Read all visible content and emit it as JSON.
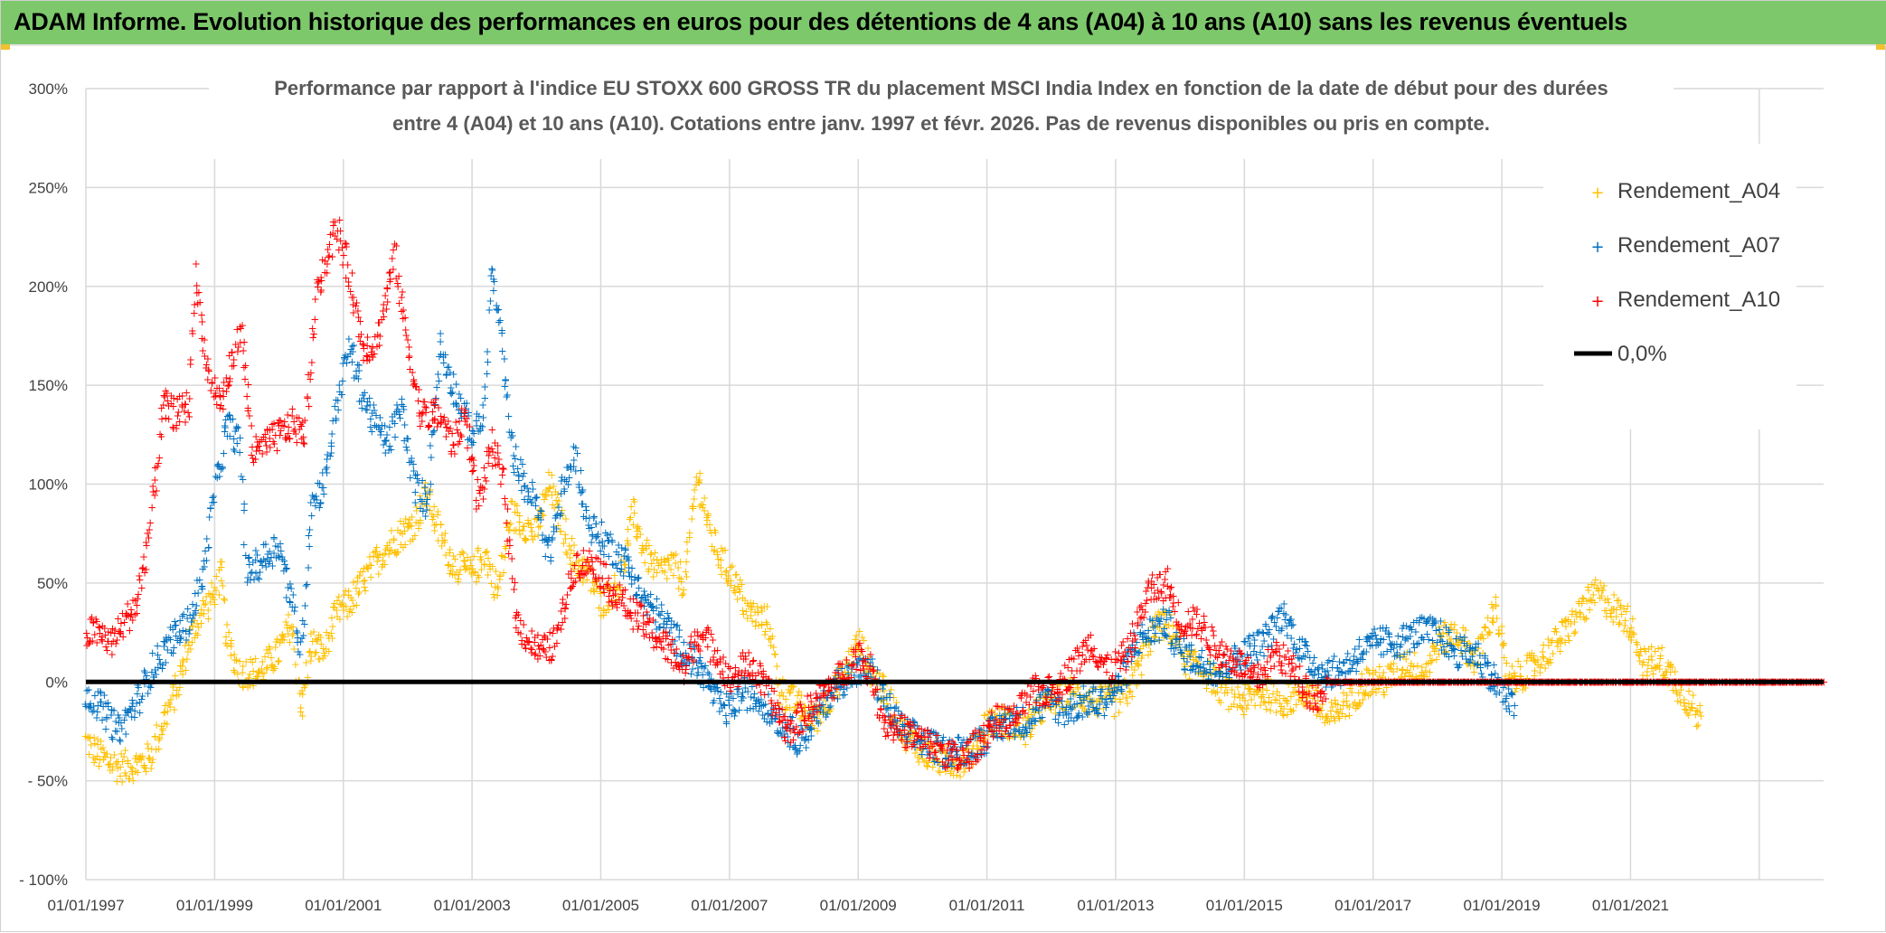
{
  "header": {
    "title": "ADAM Informe. Evolution historique des performances en euros pour des détentions de 4 ans (A04) à 10 ans (A10) sans les revenus éventuels"
  },
  "colors": {
    "banner": "#7dc86b",
    "A04": "#ffc000",
    "A07": "#0070c0",
    "A10": "#ff0000",
    "zero_line": "#000000",
    "grid": "#d9d9d9"
  },
  "chart_data": {
    "type": "scatter",
    "subtitle_lines": [
      "Performance par rapport à l'indice EU STOXX 600 GROSS TR  du placement MSCI India Index en fonction de la date de début pour des durées",
      "entre 4 (A04) et 10 ans (A10). Cotations entre janv. 1997 et févr. 2026. Pas de revenus disponibles ou pris en compte."
    ],
    "y_axis": {
      "min": -100,
      "max": 300,
      "step": 50,
      "tick_labels": [
        "- 100%",
        "- 50%",
        "0%",
        "50%",
        "100%",
        "150%",
        "200%",
        "250%",
        "300%"
      ]
    },
    "x_axis": {
      "min": 1997.0,
      "max": 2024.0,
      "tick_years": [
        1997,
        1999,
        2001,
        2003,
        2005,
        2007,
        2009,
        2011,
        2013,
        2015,
        2017,
        2019,
        2021
      ],
      "tick_labels": [
        "01/01/1997",
        "01/01/1999",
        "01/01/2001",
        "01/01/2003",
        "01/01/2005",
        "01/01/2007",
        "01/01/2009",
        "01/01/2011",
        "01/01/2013",
        "01/01/2015",
        "01/01/2017",
        "01/01/2019",
        "01/01/2021"
      ],
      "grid_lines": [
        1997,
        1999,
        2001,
        2003,
        2005,
        2007,
        2009,
        2011,
        2013,
        2015,
        2017,
        2019,
        2021,
        2023
      ]
    },
    "legend": {
      "position": "top-right",
      "entries": [
        "Rendement_A04",
        "Rendement_A07",
        "Rendement_A10",
        "0,0%"
      ]
    },
    "series": [
      {
        "name": "Rendement_A04",
        "x_start": 1997.0,
        "x_end": 2022.1,
        "keyframes": [
          [
            1997.0,
            -30
          ],
          [
            1997.2,
            -37
          ],
          [
            1997.5,
            -43
          ],
          [
            1997.8,
            -42
          ],
          [
            1998.0,
            -38
          ],
          [
            1998.2,
            -20
          ],
          [
            1998.4,
            -5
          ],
          [
            1998.6,
            20
          ],
          [
            1998.8,
            35
          ],
          [
            1999.0,
            45
          ],
          [
            1999.1,
            55
          ],
          [
            1999.2,
            20
          ],
          [
            1999.4,
            5
          ],
          [
            1999.7,
            5
          ],
          [
            2000.0,
            15
          ],
          [
            2000.2,
            30
          ],
          [
            2000.35,
            -15
          ],
          [
            2000.5,
            20
          ],
          [
            2000.7,
            15
          ],
          [
            2000.9,
            35
          ],
          [
            2001.1,
            40
          ],
          [
            2001.3,
            50
          ],
          [
            2001.6,
            65
          ],
          [
            2001.9,
            75
          ],
          [
            2002.1,
            80
          ],
          [
            2002.3,
            95
          ],
          [
            2002.5,
            75
          ],
          [
            2002.7,
            60
          ],
          [
            2003.0,
            55
          ],
          [
            2003.2,
            65
          ],
          [
            2003.4,
            45
          ],
          [
            2003.6,
            85
          ],
          [
            2003.8,
            80
          ],
          [
            2004.0,
            75
          ],
          [
            2004.2,
            100
          ],
          [
            2004.4,
            80
          ],
          [
            2004.6,
            60
          ],
          [
            2004.8,
            55
          ],
          [
            2005.0,
            40
          ],
          [
            2005.3,
            50
          ],
          [
            2005.5,
            85
          ],
          [
            2005.7,
            65
          ],
          [
            2005.9,
            55
          ],
          [
            2006.1,
            60
          ],
          [
            2006.3,
            50
          ],
          [
            2006.5,
            105
          ],
          [
            2006.7,
            75
          ],
          [
            2006.9,
            60
          ],
          [
            2007.1,
            50
          ],
          [
            2007.3,
            35
          ],
          [
            2007.6,
            30
          ],
          [
            2007.8,
            -5
          ],
          [
            2008.0,
            -10
          ],
          [
            2008.3,
            -20
          ],
          [
            2008.6,
            -5
          ],
          [
            2008.8,
            5
          ],
          [
            2009.0,
            20
          ],
          [
            2009.2,
            5
          ],
          [
            2009.5,
            -10
          ],
          [
            2009.7,
            -25
          ],
          [
            2010.0,
            -35
          ],
          [
            2010.3,
            -40
          ],
          [
            2010.6,
            -40
          ],
          [
            2010.8,
            -35
          ],
          [
            2011.0,
            -20
          ],
          [
            2011.3,
            -20
          ],
          [
            2011.6,
            -25
          ],
          [
            2011.8,
            -15
          ],
          [
            2012.0,
            -10
          ],
          [
            2012.3,
            -5
          ],
          [
            2012.6,
            -10
          ],
          [
            2012.8,
            -10
          ],
          [
            2013.0,
            -10
          ],
          [
            2013.2,
            -5
          ],
          [
            2013.5,
            20
          ],
          [
            2013.7,
            30
          ],
          [
            2013.9,
            25
          ],
          [
            2014.1,
            10
          ],
          [
            2014.4,
            5
          ],
          [
            2014.7,
            -5
          ],
          [
            2015.0,
            -10
          ],
          [
            2015.3,
            -5
          ],
          [
            2015.6,
            -10
          ],
          [
            2016.0,
            -5
          ],
          [
            2016.3,
            -20
          ],
          [
            2016.6,
            -10
          ],
          [
            2016.9,
            0
          ],
          [
            2017.2,
            0
          ],
          [
            2017.5,
            10
          ],
          [
            2017.8,
            5
          ],
          [
            2018.0,
            20
          ],
          [
            2018.3,
            25
          ],
          [
            2018.6,
            10
          ],
          [
            2018.9,
            40
          ],
          [
            2019.1,
            0
          ],
          [
            2019.4,
            5
          ],
          [
            2019.7,
            15
          ],
          [
            2020.0,
            25
          ],
          [
            2020.2,
            35
          ],
          [
            2020.5,
            45
          ],
          [
            2020.8,
            35
          ],
          [
            2021.0,
            30
          ],
          [
            2021.2,
            10
          ],
          [
            2021.5,
            10
          ],
          [
            2021.8,
            -5
          ],
          [
            2022.1,
            -20
          ]
        ]
      },
      {
        "name": "Rendement_A07",
        "x_start": 1997.0,
        "x_end": 2019.2,
        "keyframes": [
          [
            1997.0,
            -5
          ],
          [
            1997.3,
            -15
          ],
          [
            1997.5,
            -25
          ],
          [
            1997.8,
            -10
          ],
          [
            1998.0,
            5
          ],
          [
            1998.3,
            20
          ],
          [
            1998.6,
            30
          ],
          [
            1998.8,
            50
          ],
          [
            1999.0,
            95
          ],
          [
            1999.2,
            130
          ],
          [
            1999.4,
            120
          ],
          [
            1999.5,
            55
          ],
          [
            1999.7,
            60
          ],
          [
            2000.0,
            70
          ],
          [
            2000.2,
            40
          ],
          [
            2000.35,
            15
          ],
          [
            2000.5,
            90
          ],
          [
            2000.7,
            100
          ],
          [
            2000.9,
            140
          ],
          [
            2001.1,
            170
          ],
          [
            2001.3,
            145
          ],
          [
            2001.5,
            130
          ],
          [
            2001.7,
            120
          ],
          [
            2001.9,
            140
          ],
          [
            2002.1,
            100
          ],
          [
            2002.3,
            90
          ],
          [
            2002.5,
            170
          ],
          [
            2002.7,
            150
          ],
          [
            2003.0,
            125
          ],
          [
            2003.2,
            135
          ],
          [
            2003.3,
            210
          ],
          [
            2003.45,
            175
          ],
          [
            2003.6,
            120
          ],
          [
            2003.8,
            100
          ],
          [
            2004.0,
            90
          ],
          [
            2004.2,
            65
          ],
          [
            2004.4,
            95
          ],
          [
            2004.6,
            115
          ],
          [
            2004.8,
            80
          ],
          [
            2005.1,
            70
          ],
          [
            2005.4,
            60
          ],
          [
            2005.7,
            40
          ],
          [
            2006.0,
            30
          ],
          [
            2006.3,
            15
          ],
          [
            2006.6,
            5
          ],
          [
            2006.8,
            -10
          ],
          [
            2007.0,
            -15
          ],
          [
            2007.2,
            -5
          ],
          [
            2007.5,
            -10
          ],
          [
            2007.8,
            -20
          ],
          [
            2008.1,
            -30
          ],
          [
            2008.4,
            -15
          ],
          [
            2008.7,
            0
          ],
          [
            2009.0,
            5
          ],
          [
            2009.2,
            5
          ],
          [
            2009.5,
            -15
          ],
          [
            2009.7,
            -25
          ],
          [
            2010.0,
            -30
          ],
          [
            2010.3,
            -35
          ],
          [
            2010.6,
            -35
          ],
          [
            2010.9,
            -30
          ],
          [
            2011.1,
            -25
          ],
          [
            2011.3,
            -20
          ],
          [
            2011.6,
            -20
          ],
          [
            2011.9,
            -10
          ],
          [
            2012.2,
            -15
          ],
          [
            2012.5,
            -10
          ],
          [
            2012.8,
            -10
          ],
          [
            2013.1,
            0
          ],
          [
            2013.3,
            20
          ],
          [
            2013.5,
            25
          ],
          [
            2013.8,
            30
          ],
          [
            2014.0,
            15
          ],
          [
            2014.3,
            10
          ],
          [
            2014.6,
            5
          ],
          [
            2015.0,
            15
          ],
          [
            2015.3,
            20
          ],
          [
            2015.6,
            35
          ],
          [
            2015.9,
            15
          ],
          [
            2016.2,
            5
          ],
          [
            2016.5,
            5
          ],
          [
            2016.8,
            15
          ],
          [
            2017.1,
            20
          ],
          [
            2017.4,
            20
          ],
          [
            2017.7,
            25
          ],
          [
            2018.0,
            25
          ],
          [
            2018.3,
            15
          ],
          [
            2018.6,
            15
          ],
          [
            2018.9,
            0
          ],
          [
            2019.2,
            -15
          ]
        ]
      },
      {
        "name": "Rendement_A10",
        "x_start": 1997.0,
        "x_end": 2024.0,
        "keyframes": [
          [
            1997.0,
            25
          ],
          [
            1997.2,
            25
          ],
          [
            1997.4,
            20
          ],
          [
            1997.6,
            30
          ],
          [
            1997.8,
            40
          ],
          [
            1998.0,
            80
          ],
          [
            1998.2,
            140
          ],
          [
            1998.4,
            135
          ],
          [
            1998.6,
            140
          ],
          [
            1998.7,
            205
          ],
          [
            1998.9,
            155
          ],
          [
            1999.1,
            140
          ],
          [
            1999.3,
            165
          ],
          [
            1999.4,
            180
          ],
          [
            1999.6,
            115
          ],
          [
            1999.8,
            120
          ],
          [
            2000.0,
            125
          ],
          [
            2000.2,
            130
          ],
          [
            2000.4,
            125
          ],
          [
            2000.6,
            200
          ],
          [
            2000.9,
            230
          ],
          [
            2001.1,
            205
          ],
          [
            2001.3,
            170
          ],
          [
            2001.5,
            170
          ],
          [
            2001.8,
            215
          ],
          [
            2002.0,
            170
          ],
          [
            2002.2,
            135
          ],
          [
            2002.5,
            135
          ],
          [
            2002.7,
            120
          ],
          [
            2002.9,
            135
          ],
          [
            2003.1,
            90
          ],
          [
            2003.3,
            120
          ],
          [
            2003.5,
            100
          ],
          [
            2003.7,
            30
          ],
          [
            2003.9,
            20
          ],
          [
            2004.1,
            15
          ],
          [
            2004.3,
            20
          ],
          [
            2004.6,
            60
          ],
          [
            2004.9,
            60
          ],
          [
            2005.2,
            45
          ],
          [
            2005.5,
            35
          ],
          [
            2005.8,
            25
          ],
          [
            2006.1,
            15
          ],
          [
            2006.3,
            5
          ],
          [
            2006.5,
            25
          ],
          [
            2006.8,
            15
          ],
          [
            2007.0,
            0
          ],
          [
            2007.3,
            10
          ],
          [
            2007.6,
            -5
          ],
          [
            2007.9,
            -25
          ],
          [
            2008.2,
            -15
          ],
          [
            2008.5,
            -5
          ],
          [
            2008.8,
            5
          ],
          [
            2009.0,
            15
          ],
          [
            2009.2,
            5
          ],
          [
            2009.4,
            -20
          ],
          [
            2009.7,
            -25
          ],
          [
            2010.0,
            -30
          ],
          [
            2010.3,
            -35
          ],
          [
            2010.6,
            -40
          ],
          [
            2010.9,
            -30
          ],
          [
            2011.1,
            -20
          ],
          [
            2011.4,
            -20
          ],
          [
            2011.7,
            -5
          ],
          [
            2012.0,
            -5
          ],
          [
            2012.3,
            5
          ],
          [
            2012.6,
            20
          ],
          [
            2012.9,
            5
          ],
          [
            2013.2,
            15
          ],
          [
            2013.5,
            45
          ],
          [
            2013.8,
            50
          ],
          [
            2014.0,
            30
          ],
          [
            2014.3,
            30
          ],
          [
            2014.6,
            15
          ],
          [
            2014.9,
            10
          ],
          [
            2015.2,
            0
          ],
          [
            2015.5,
            15
          ],
          [
            2015.8,
            5
          ],
          [
            2016.1,
            -10
          ],
          [
            2016.3,
            0
          ],
          [
            2017.0,
            0
          ],
          [
            2018.0,
            0
          ],
          [
            2019.0,
            0
          ],
          [
            2020.0,
            0
          ],
          [
            2021.0,
            0
          ],
          [
            2022.0,
            0
          ],
          [
            2023.0,
            0
          ],
          [
            2024.0,
            0
          ]
        ]
      }
    ],
    "reference_line": {
      "name": "0,0%",
      "y": 0
    }
  }
}
